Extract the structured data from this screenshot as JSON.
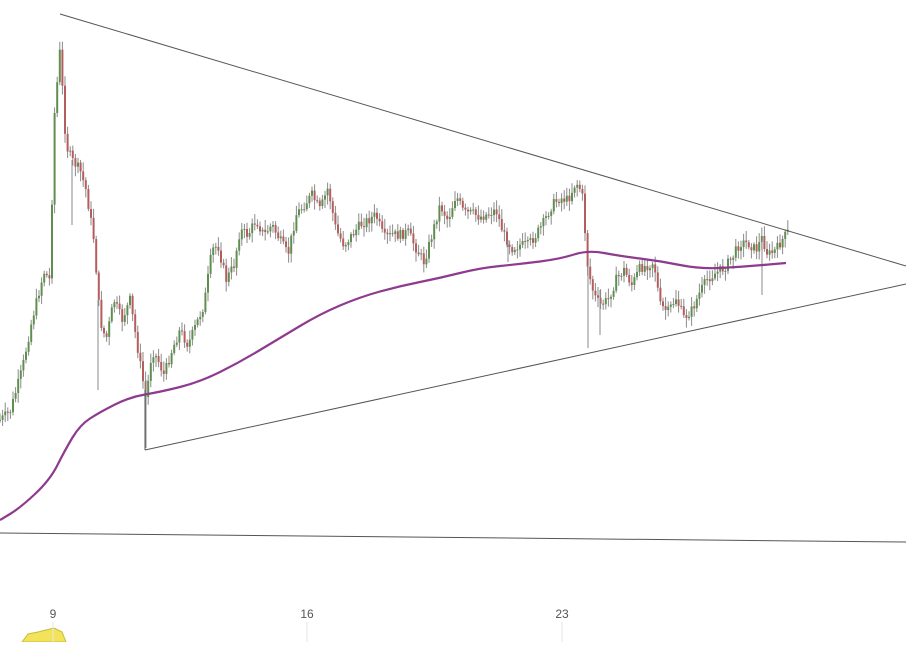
{
  "chart_data": {
    "type": "candlestick",
    "x_tick_labels": [
      "9",
      "16",
      "23"
    ],
    "colors": {
      "up": "#5f8f4e",
      "down": "#b55c5c",
      "wick": "#8a8a8a",
      "moving_average": "#8e3a8e",
      "trendline": "#555555",
      "volume_fill": "#f2e35b"
    },
    "series": [
      {
        "type": "candles",
        "close_path": [
          [
            0,
            420
          ],
          [
            10,
            412
          ],
          [
            22,
            370
          ],
          [
            32,
            320
          ],
          [
            44,
            272
          ],
          [
            50,
            280
          ],
          [
            54,
            120
          ],
          [
            60,
            50
          ],
          [
            66,
            145
          ],
          [
            72,
            160
          ],
          [
            80,
            170
          ],
          [
            86,
            190
          ],
          [
            94,
            240
          ],
          [
            100,
            320
          ],
          [
            106,
            340
          ],
          [
            114,
            300
          ],
          [
            122,
            320
          ],
          [
            130,
            300
          ],
          [
            138,
            350
          ],
          [
            146,
            400
          ],
          [
            152,
            350
          ],
          [
            158,
            360
          ],
          [
            164,
            375
          ],
          [
            172,
            350
          ],
          [
            180,
            330
          ],
          [
            188,
            345
          ],
          [
            196,
            325
          ],
          [
            204,
            305
          ],
          [
            212,
            250
          ],
          [
            218,
            245
          ],
          [
            226,
            280
          ],
          [
            234,
            265
          ],
          [
            240,
            230
          ],
          [
            248,
            235
          ],
          [
            256,
            220
          ],
          [
            264,
            235
          ],
          [
            272,
            225
          ],
          [
            280,
            240
          ],
          [
            288,
            255
          ],
          [
            296,
            215
          ],
          [
            304,
            205
          ],
          [
            312,
            195
          ],
          [
            320,
            210
          ],
          [
            328,
            188
          ],
          [
            336,
            230
          ],
          [
            344,
            245
          ],
          [
            352,
            235
          ],
          [
            360,
            225
          ],
          [
            368,
            220
          ],
          [
            376,
            215
          ],
          [
            384,
            238
          ],
          [
            392,
            235
          ],
          [
            400,
            235
          ],
          [
            408,
            232
          ],
          [
            416,
            248
          ],
          [
            424,
            262
          ],
          [
            432,
            235
          ],
          [
            440,
            205
          ],
          [
            448,
            220
          ],
          [
            456,
            195
          ],
          [
            464,
            213
          ],
          [
            472,
            213
          ],
          [
            480,
            217
          ],
          [
            488,
            214
          ],
          [
            496,
            210
          ],
          [
            504,
            235
          ],
          [
            512,
            248
          ],
          [
            520,
            245
          ],
          [
            528,
            245
          ],
          [
            536,
            235
          ],
          [
            544,
            222
          ],
          [
            552,
            205
          ],
          [
            560,
            198
          ],
          [
            568,
            200
          ],
          [
            576,
            182
          ],
          [
            582,
            192
          ],
          [
            588,
            270
          ],
          [
            594,
            295
          ],
          [
            600,
            305
          ],
          [
            608,
            300
          ],
          [
            616,
            280
          ],
          [
            624,
            270
          ],
          [
            632,
            285
          ],
          [
            640,
            268
          ],
          [
            648,
            265
          ],
          [
            654,
            262
          ],
          [
            660,
            305
          ],
          [
            668,
            312
          ],
          [
            676,
            298
          ],
          [
            684,
            318
          ],
          [
            692,
            310
          ],
          [
            700,
            292
          ],
          [
            708,
            278
          ],
          [
            716,
            273
          ],
          [
            724,
            268
          ],
          [
            732,
            258
          ],
          [
            740,
            243
          ],
          [
            748,
            243
          ],
          [
            756,
            250
          ],
          [
            762,
            238
          ],
          [
            768,
            255
          ],
          [
            776,
            250
          ],
          [
            782,
            240
          ],
          [
            788,
            232
          ]
        ]
      },
      {
        "type": "moving_average",
        "points": [
          [
            0,
            520
          ],
          [
            20,
            508
          ],
          [
            50,
            480
          ],
          [
            65,
            450
          ],
          [
            80,
            425
          ],
          [
            100,
            412
          ],
          [
            130,
            397
          ],
          [
            160,
            392
          ],
          [
            200,
            382
          ],
          [
            240,
            362
          ],
          [
            280,
            338
          ],
          [
            320,
            314
          ],
          [
            360,
            297
          ],
          [
            400,
            286
          ],
          [
            440,
            278
          ],
          [
            480,
            268
          ],
          [
            520,
            264
          ],
          [
            560,
            259
          ],
          [
            588,
            250
          ],
          [
            620,
            256
          ],
          [
            660,
            261
          ],
          [
            700,
            269
          ],
          [
            740,
            267
          ],
          [
            786,
            263
          ]
        ]
      }
    ],
    "trendlines": [
      [
        [
          60,
          14
        ],
        [
          906,
          266
        ]
      ],
      [
        [
          145,
          450
        ],
        [
          906,
          284
        ]
      ],
      [
        [
          145,
          450
        ],
        [
          145,
          390
        ]
      ],
      [
        [
          0,
          533
        ],
        [
          906,
          542
        ]
      ]
    ],
    "volume_area": [
      [
        22,
        642
      ],
      [
        28,
        634
      ],
      [
        38,
        632
      ],
      [
        46,
        630
      ],
      [
        54,
        628
      ],
      [
        62,
        632
      ],
      [
        66,
        642
      ]
    ]
  }
}
